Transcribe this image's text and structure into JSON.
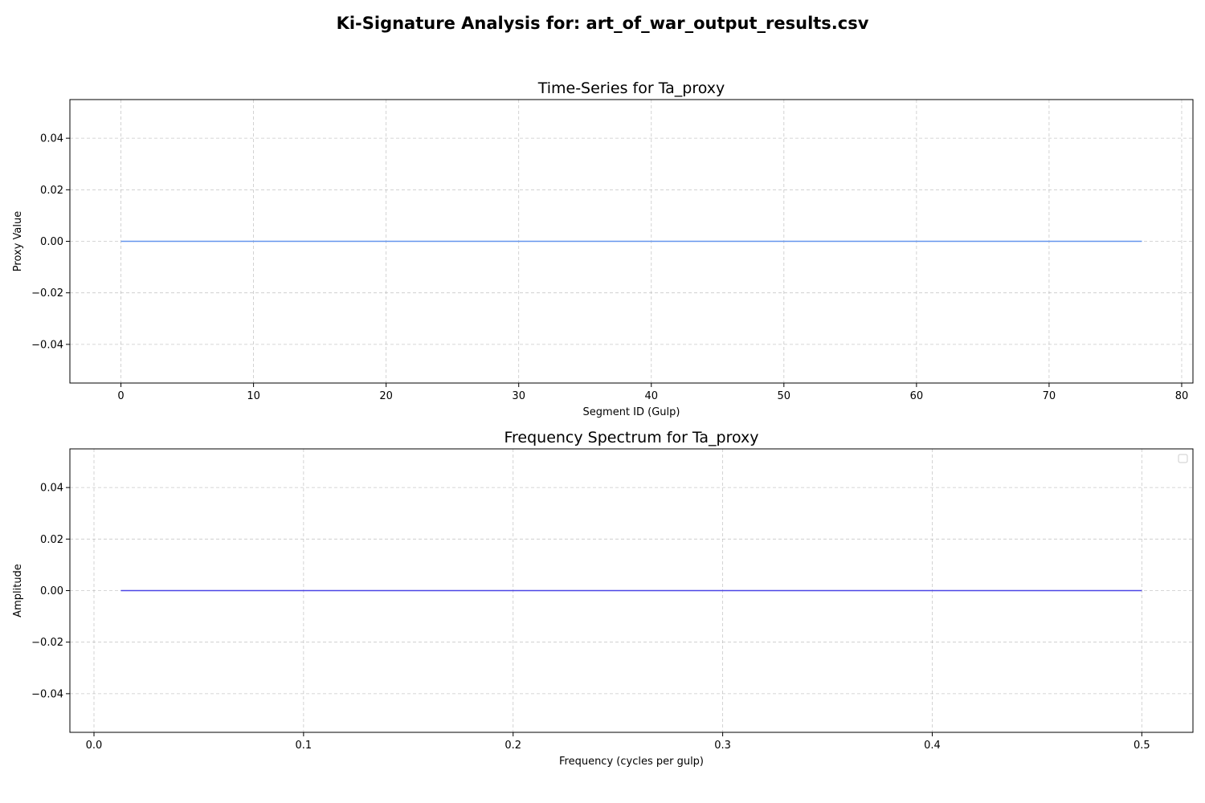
{
  "figure": {
    "suptitle": "Ki-Signature Analysis for: art_of_war_output_results.csv"
  },
  "chart_data": [
    {
      "type": "line",
      "title": "Time-Series for Ta_proxy",
      "xlabel": "Segment ID (Gulp)",
      "ylabel": "Proxy Value",
      "xlim": [
        -3.85,
        80.85
      ],
      "ylim": [
        -0.055,
        0.055
      ],
      "xticks": [
        0,
        10,
        20,
        30,
        40,
        50,
        60,
        70,
        80
      ],
      "xtick_labels": [
        "0",
        "10",
        "20",
        "30",
        "40",
        "50",
        "60",
        "70",
        "80"
      ],
      "yticks": [
        -0.04,
        -0.02,
        0.0,
        0.02,
        0.04
      ],
      "ytick_labels": [
        "−0.04",
        "−0.02",
        "0.00",
        "0.02",
        "0.04"
      ],
      "grid": true,
      "series": [
        {
          "color": "#6495ED",
          "x": [
            0,
            77
          ],
          "y": [
            0.0,
            0.0
          ]
        }
      ]
    },
    {
      "type": "line",
      "title": "Frequency Spectrum for Ta_proxy",
      "xlabel": "Frequency (cycles per gulp)",
      "ylabel": "Amplitude",
      "xlim": [
        -0.0115,
        0.5244
      ],
      "ylim": [
        -0.055,
        0.055
      ],
      "xticks": [
        0.0,
        0.1,
        0.2,
        0.3,
        0.4,
        0.5
      ],
      "xtick_labels": [
        "0.0",
        "0.1",
        "0.2",
        "0.3",
        "0.4",
        "0.5"
      ],
      "yticks": [
        -0.04,
        -0.02,
        0.0,
        0.02,
        0.04
      ],
      "ytick_labels": [
        "−0.04",
        "−0.02",
        "0.00",
        "0.02",
        "0.04"
      ],
      "grid": true,
      "legend": "top-right",
      "series": [
        {
          "color": "#4B45E6",
          "x": [
            0.0128,
            0.5
          ],
          "y": [
            0.0,
            0.0
          ]
        }
      ]
    }
  ]
}
